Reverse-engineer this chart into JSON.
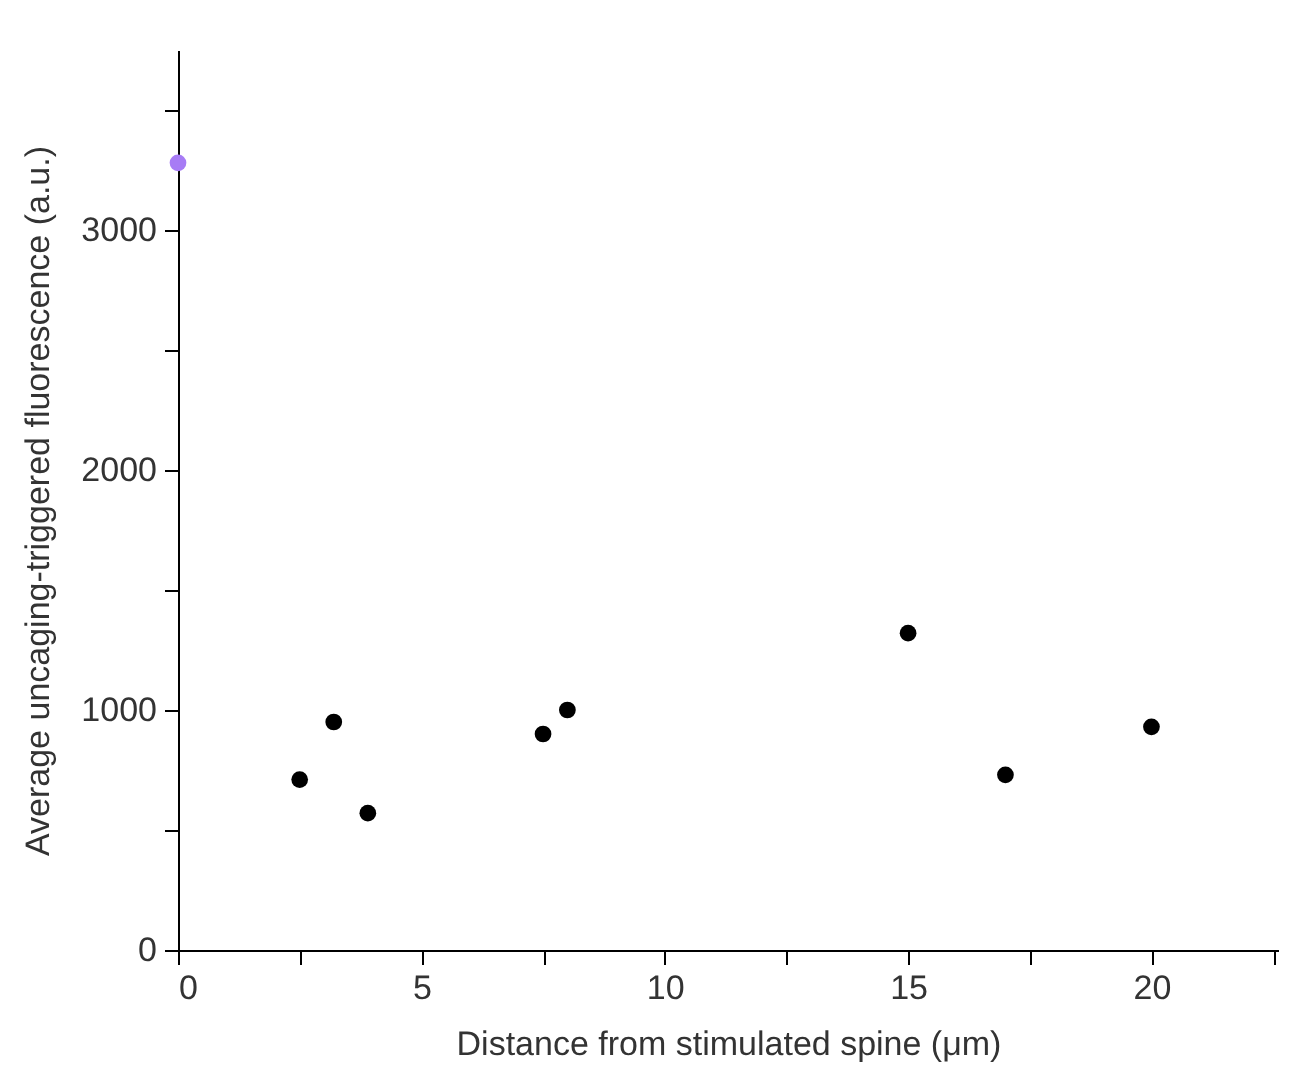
{
  "chart_data": {
    "type": "scatter",
    "xlabel": "Distance from stimulated spine (μm)",
    "ylabel": "Average uncaging-triggered fluorescence (a.u.)",
    "series": [
      {
        "color": "#000000",
        "x": [
          2.5,
          3.2,
          3.9,
          7.5,
          8,
          15,
          17,
          20
        ],
        "values": [
          710,
          950,
          570,
          900,
          1000,
          1320,
          730,
          930
        ]
      },
      {
        "color": "#a77cf5",
        "x": [
          0
        ],
        "values": [
          3280
        ]
      }
    ],
    "xlim": [
      0,
      22.6
    ],
    "ylim": [
      0,
      3750
    ],
    "xticks": [
      0,
      {
        "value": 2.5,
        "label": null
      },
      5,
      {
        "value": 7.5,
        "label": null
      },
      10,
      {
        "value": 12.5,
        "label": null
      },
      15,
      {
        "value": 17.5,
        "label": null
      },
      20,
      {
        "value": 22.5,
        "label": null
      }
    ],
    "yticks": [
      0,
      {
        "value": 500,
        "label": null
      },
      1000,
      {
        "value": 1500,
        "label": null
      },
      2000,
      {
        "value": 2500,
        "label": null
      },
      3000,
      {
        "value": 3500,
        "label": null
      }
    ],
    "grid": false,
    "marker": "circle"
  }
}
